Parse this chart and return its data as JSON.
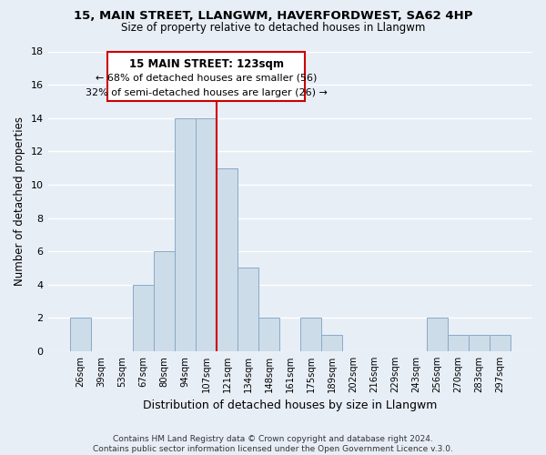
{
  "title1": "15, MAIN STREET, LLANGWM, HAVERFORDWEST, SA62 4HP",
  "title2": "Size of property relative to detached houses in Llangwm",
  "xlabel": "Distribution of detached houses by size in Llangwm",
  "ylabel": "Number of detached properties",
  "footer1": "Contains HM Land Registry data © Crown copyright and database right 2024.",
  "footer2": "Contains public sector information licensed under the Open Government Licence v.3.0.",
  "bin_labels": [
    "26sqm",
    "39sqm",
    "53sqm",
    "67sqm",
    "80sqm",
    "94sqm",
    "107sqm",
    "121sqm",
    "134sqm",
    "148sqm",
    "161sqm",
    "175sqm",
    "189sqm",
    "202sqm",
    "216sqm",
    "229sqm",
    "243sqm",
    "256sqm",
    "270sqm",
    "283sqm",
    "297sqm"
  ],
  "bar_heights": [
    2,
    0,
    0,
    4,
    6,
    14,
    14,
    11,
    5,
    2,
    0,
    2,
    1,
    0,
    0,
    0,
    0,
    2,
    1,
    1,
    1
  ],
  "highlight_bar_index": 7,
  "normal_bar_color": "#ccdce8",
  "highlight_line_color": "#cc0000",
  "annotation_title": "15 MAIN STREET: 123sqm",
  "annotation_line1": "← 68% of detached houses are smaller (56)",
  "annotation_line2": "32% of semi-detached houses are larger (26) →",
  "ylim": [
    0,
    18
  ],
  "yticks": [
    0,
    2,
    4,
    6,
    8,
    10,
    12,
    14,
    16,
    18
  ],
  "bg_color": "#e8eef6",
  "bar_edge_color": "#88aac8",
  "grid_color": "#ffffff",
  "annotation_box_edge": "#cc0000"
}
